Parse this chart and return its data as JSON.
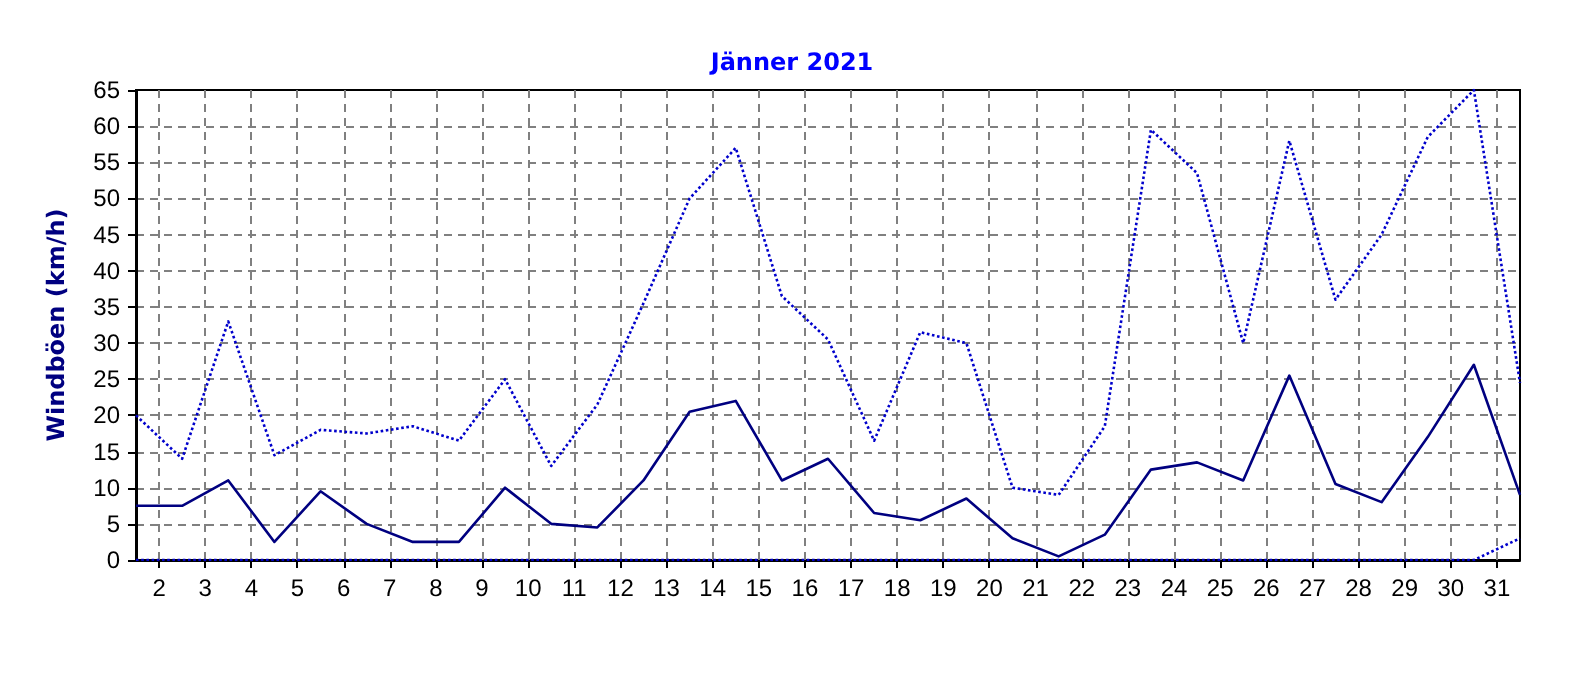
{
  "chart_data": {
    "type": "line",
    "title": "Jänner 2021",
    "ylabel": "Windböen (km/h)",
    "x": [
      1.5,
      2.5,
      3.5,
      4.5,
      5.5,
      6.5,
      7.5,
      8.5,
      9.5,
      10.5,
      11.5,
      12.5,
      13.5,
      14.5,
      15.5,
      16.5,
      17.5,
      18.5,
      19.5,
      20.5,
      21.5,
      22.5,
      23.5,
      24.5,
      25.5,
      26.5,
      27.5,
      28.5,
      29.5,
      30.5,
      31.5
    ],
    "series": [
      {
        "color": "#0000cc",
        "line_style": "dotted",
        "values": [
          20,
          14,
          33,
          14.5,
          18,
          17.5,
          18.5,
          16.5,
          25,
          13,
          21.5,
          35.5,
          50,
          57,
          36.5,
          30.5,
          16.5,
          31.5,
          30,
          10,
          9,
          18.5,
          59.5,
          53.5,
          30,
          58,
          36,
          45,
          58.5,
          65,
          24.5
        ]
      },
      {
        "color": "#000080",
        "line_style": "solid",
        "values": [
          7.5,
          7.5,
          11,
          2.5,
          9.5,
          5,
          2.5,
          2.5,
          10,
          5,
          4.5,
          11,
          20.5,
          22,
          11,
          14,
          6.5,
          5.5,
          8.5,
          3,
          0.5,
          3.5,
          12.5,
          13.5,
          11,
          25.5,
          10.5,
          8,
          17,
          27,
          9
        ]
      },
      {
        "color": "#0000cc",
        "line_style": "dotted",
        "values": [
          0,
          0,
          0,
          0,
          0,
          0,
          0,
          0,
          0,
          0,
          0,
          0,
          0,
          0,
          0,
          0,
          0,
          0,
          0,
          0,
          0,
          0,
          0,
          0,
          0,
          0,
          0,
          0,
          0,
          0,
          3
        ]
      }
    ],
    "xlim": [
      1.5,
      31.5
    ],
    "xticks": [
      2,
      3,
      4,
      5,
      6,
      7,
      8,
      9,
      10,
      11,
      12,
      13,
      14,
      15,
      16,
      17,
      18,
      19,
      20,
      21,
      22,
      23,
      24,
      25,
      26,
      27,
      28,
      29,
      30,
      31
    ],
    "ylim": [
      0,
      65
    ],
    "yticks": [
      0,
      5,
      10,
      15,
      20,
      25,
      30,
      35,
      40,
      45,
      50,
      55,
      60,
      65
    ],
    "grid": true,
    "marker": "none"
  }
}
